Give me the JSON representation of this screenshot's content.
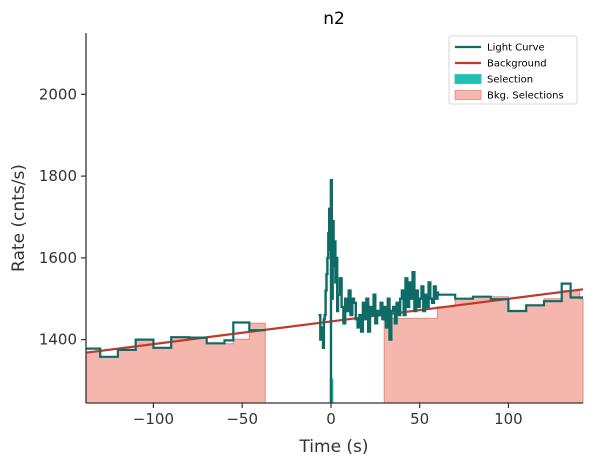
{
  "chart_data": {
    "type": "line",
    "title": "n2",
    "xlabel": "Time (s)",
    "ylabel": "Rate (cnts/s)",
    "xlim": [
      -138,
      142
    ],
    "ylim": [
      1245,
      2150
    ],
    "x_ticks": [
      -100,
      -50,
      0,
      50,
      100
    ],
    "x_tick_labels": [
      "−100",
      "−50",
      "0",
      "50",
      "100"
    ],
    "y_ticks": [
      1400,
      1600,
      1800,
      2000
    ],
    "y_tick_labels": [
      "1400",
      "1600",
      "1800",
      "2000"
    ],
    "grid": false,
    "legend_position": "top-right",
    "colors": {
      "light_curve": "#0e6b66",
      "background": "#c0392b",
      "selection": "#20c0b4",
      "bkg_selection_fill": "#f4b6ad",
      "bkg_selection_edge": "#e58a7e"
    },
    "legend": [
      {
        "label": "Light Curve",
        "kind": "line",
        "color": "#0e6b66"
      },
      {
        "label": "Background",
        "kind": "line",
        "color": "#c0392b"
      },
      {
        "label": "Selection",
        "kind": "patch",
        "color": "#20c0b4"
      },
      {
        "label": "Bkg. Selections",
        "kind": "patch",
        "color": "#f4b6ad"
      }
    ],
    "background_model": {
      "x": [
        -138,
        142
      ],
      "y": [
        1368,
        1523
      ]
    },
    "bkg_selections": [
      {
        "x": [
          -138,
          -130,
          -120,
          -110,
          -100,
          -90,
          -80,
          -70,
          -55,
          -46,
          -37
        ],
        "y": [
          1370,
          1358,
          1374,
          1399,
          1380,
          1405,
          1403,
          1390,
          1401,
          1440,
          1440
        ],
        "last": -37
      },
      {
        "x": [
          30,
          60,
          70,
          80,
          100,
          110,
          120,
          130,
          140
        ],
        "y": [
          1452,
          1480,
          1500,
          1505,
          1470,
          1485,
          1500,
          1520,
          1500
        ],
        "last": 142
      }
    ],
    "light_curve_low": {
      "x": [
        -138,
        -130,
        -120,
        -110,
        -100,
        -90,
        -80,
        -70,
        -60,
        -55,
        -46
      ],
      "y": [
        1378,
        1358,
        1375,
        1400,
        1380,
        1406,
        1405,
        1391,
        1398,
        1442,
        1423
      ],
      "last": -37
    },
    "light_curve_high": {
      "x": [
        60,
        70,
        80,
        90,
        100,
        110,
        120,
        125,
        130,
        135
      ],
      "y": [
        1510,
        1500,
        1505,
        1499,
        1470,
        1484,
        1494,
        1494,
        1537,
        1503
      ],
      "last": 142
    },
    "light_curve_active": {
      "x": [
        -7,
        -6,
        -5,
        -4.5,
        -4,
        -3.5,
        -3,
        -2.5,
        -2,
        -1.5,
        -1,
        -0.5,
        0,
        0.5,
        1,
        1.5,
        2,
        2.5,
        3,
        3.5,
        4,
        5,
        6,
        7,
        8,
        9,
        10,
        11,
        12,
        13,
        14,
        15,
        16,
        17,
        18,
        19,
        20,
        21,
        22,
        23,
        24,
        25,
        26,
        27,
        28,
        29,
        30,
        31,
        32,
        33,
        34,
        35,
        36,
        37,
        38,
        39,
        40,
        41,
        42,
        43,
        44,
        45,
        46,
        47,
        48,
        49,
        50,
        51,
        52,
        53,
        54,
        55,
        56,
        57,
        58,
        59,
        60
      ],
      "y": [
        1460,
        1400,
        1430,
        1380,
        1450,
        1460,
        1520,
        1560,
        1600,
        1660,
        1720,
        1620,
        1790,
        1500,
        1690,
        1580,
        1640,
        1540,
        1600,
        1470,
        1510,
        1550,
        1480,
        1440,
        1500,
        1470,
        1520,
        1460,
        1500,
        1490,
        1450,
        1430,
        1460,
        1420,
        1490,
        1450,
        1500,
        1420,
        1480,
        1460,
        1510,
        1440,
        1470,
        1460,
        1490,
        1450,
        1480,
        1430,
        1500,
        1400,
        1470,
        1480,
        1440,
        1490,
        1460,
        1500,
        1520,
        1460,
        1550,
        1480,
        1540,
        1500,
        1565,
        1470,
        1520,
        1480,
        1500,
        1530,
        1470,
        1510,
        1480,
        1540,
        1500,
        1490,
        1530,
        1500,
        1515
      ]
    },
    "selection": {
      "x": [
        0,
        1
      ],
      "y_bottom": 1245,
      "y_top": 1305
    },
    "selection_spike": {
      "x": 0,
      "y_low": 1245,
      "y_high": 1790
    }
  }
}
